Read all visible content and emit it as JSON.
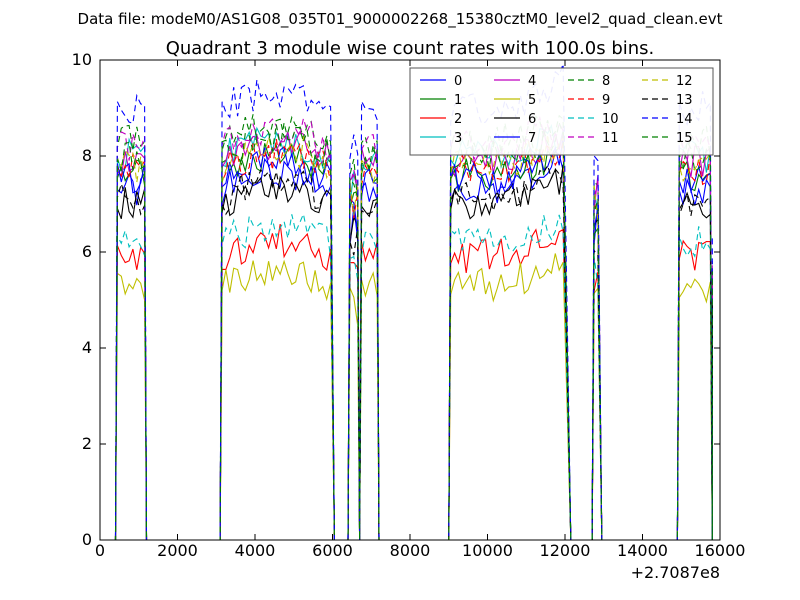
{
  "chart_data": {
    "type": "line",
    "suptitle": "Data file: modeM0/AS1G08_035T01_9000002268_15380cztM0_level2_quad_clean.evt",
    "title": "Quadrant 3 module wise count rates with 100.0s bins.",
    "xlabel": "",
    "ylabel": "",
    "x_offset_label": "+2.7087e8",
    "xlim": [
      0,
      16000
    ],
    "ylim": [
      0,
      10
    ],
    "xticks": [
      "0",
      "2000",
      "4000",
      "6000",
      "8000",
      "10000",
      "12000",
      "14000",
      "16000"
    ],
    "yticks": [
      "0",
      "2",
      "4",
      "6",
      "8",
      "10"
    ],
    "grid": false,
    "legend_position": "top-right",
    "legend_columns": 4,
    "segments": [
      {
        "start": 450,
        "end": 1150,
        "ramp_end": 1200
      },
      {
        "start": 3150,
        "end": 5950,
        "ramp_end": 6050
      },
      {
        "start": 6450,
        "end": 6650,
        "ramp_end": 6700
      },
      {
        "start": 6750,
        "end": 7150,
        "ramp_end": 7200
      },
      {
        "start": 9050,
        "end": 12000,
        "ramp_end": 12150
      },
      {
        "start": 12750,
        "end": 12850,
        "ramp_end": 12950
      },
      {
        "start": 14950,
        "end": 15800,
        "ramp_end": 15800
      }
    ],
    "series": [
      {
        "name": "0",
        "color": "#0000ff",
        "dash": "solid",
        "level": 7.3
      },
      {
        "name": "1",
        "color": "#008000",
        "dash": "solid",
        "level": 7.6
      },
      {
        "name": "2",
        "color": "#ff0000",
        "dash": "solid",
        "level": 5.9
      },
      {
        "name": "3",
        "color": "#00bfbf",
        "dash": "solid",
        "level": 8.0
      },
      {
        "name": "4",
        "color": "#bf00bf",
        "dash": "solid",
        "level": 7.9
      },
      {
        "name": "5",
        "color": "#bfbf00",
        "dash": "solid",
        "level": 5.3
      },
      {
        "name": "6",
        "color": "#000000",
        "dash": "solid",
        "level": 7.0
      },
      {
        "name": "7",
        "color": "#0000ff",
        "dash": "solid",
        "level": 7.5
      },
      {
        "name": "8",
        "color": "#008000",
        "dash": "dashed",
        "level": 8.3
      },
      {
        "name": "9",
        "color": "#ff0000",
        "dash": "dashed",
        "level": 7.7
      },
      {
        "name": "10",
        "color": "#00bfbf",
        "dash": "dashed",
        "level": 6.2
      },
      {
        "name": "11",
        "color": "#bf00bf",
        "dash": "dashed",
        "level": 8.2
      },
      {
        "name": "12",
        "color": "#bfbf00",
        "dash": "dashed",
        "level": 7.8
      },
      {
        "name": "13",
        "color": "#000000",
        "dash": "dashed",
        "level": 7.1
      },
      {
        "name": "14",
        "color": "#0000ff",
        "dash": "dashed",
        "level": 9.0
      },
      {
        "name": "15",
        "color": "#008000",
        "dash": "dashed",
        "level": 8.0
      }
    ]
  }
}
